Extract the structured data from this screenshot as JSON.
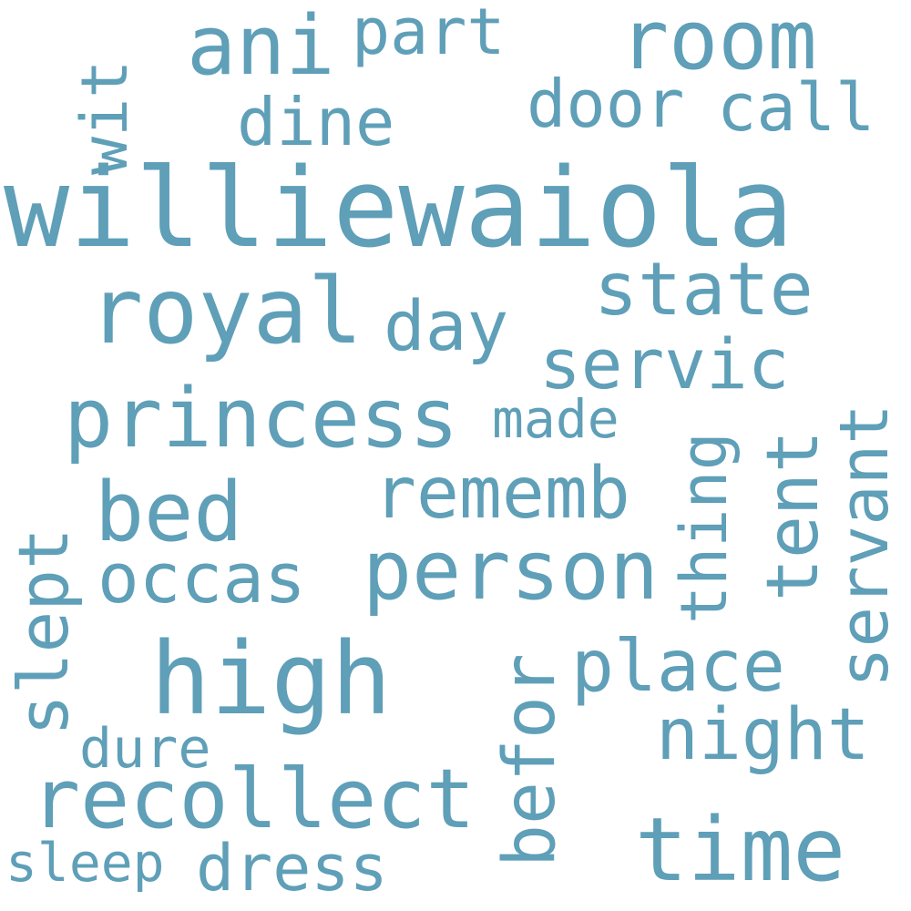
{
  "colors": {
    "background": "#ffffff",
    "word": "#5f9fb8"
  },
  "words": {
    "williewaiola": "williewaiola",
    "royal": "royal",
    "princess": "princess",
    "high": "high",
    "person": "person",
    "recollect": "recollect",
    "ani": "ani",
    "room": "room",
    "part": "part",
    "door": "door",
    "call": "call",
    "dine": "dine",
    "wit": "wit",
    "state": "state",
    "day": "day",
    "servic": "servic",
    "made": "made",
    "rememb": "rememb",
    "bed": "bed",
    "occas": "occas",
    "slept": "slept",
    "thing": "thing",
    "tent": "tent",
    "servant": "servant",
    "place": "place",
    "befor": "befor",
    "night": "night",
    "dure": "dure",
    "time": "time",
    "sleep": "sleep",
    "dress": "dress"
  }
}
